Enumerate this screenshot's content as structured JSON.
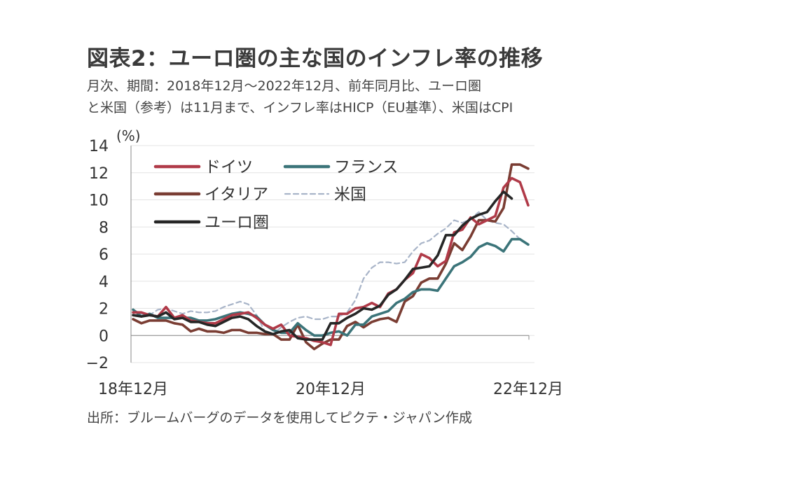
{
  "title": "図表2：ユーロ圏の主な国のインフレ率の推移",
  "subtitle_line1": "月次、期間：2018年12月～2022年12月、前年同月比、ユーロ圏",
  "subtitle_line2": "と米国（参考）は11月まで、インフレ率はHICP（EU基準）、米国はCPI",
  "source": "出所：ブルームバーグのデータを使用してピクテ・ジャパン作成",
  "chart_data": {
    "type": "line",
    "ylabel": "(%)",
    "ylim": [
      -2,
      14
    ],
    "yticks": [
      -2,
      0,
      2,
      4,
      6,
      8,
      10,
      12,
      14
    ],
    "x_tick_labels": [
      {
        "index": 0,
        "label": "18年12月"
      },
      {
        "index": 24,
        "label": "20年12月"
      },
      {
        "index": 48,
        "label": "22年12月"
      }
    ],
    "grid": "horizontal",
    "legend": "top-left",
    "series": [
      {
        "name": "ドイツ",
        "color": "#b03a48",
        "dash": false,
        "values": [
          1.7,
          1.7,
          1.5,
          1.4,
          2.1,
          1.3,
          1.5,
          1.1,
          1.0,
          0.9,
          0.9,
          1.2,
          1.5,
          1.6,
          1.7,
          1.3,
          0.8,
          0.5,
          0.8,
          0.0,
          -0.1,
          -0.2,
          -0.4,
          -0.5,
          -0.7,
          1.6,
          1.6,
          2.0,
          2.1,
          2.4,
          2.1,
          3.1,
          3.4,
          4.1,
          4.6,
          6.0,
          5.7,
          5.1,
          5.5,
          7.6,
          7.8,
          8.7,
          8.2,
          8.5,
          8.8,
          10.9,
          11.6,
          11.3,
          9.6
        ]
      },
      {
        "name": "フランス",
        "color": "#3b7479",
        "dash": false,
        "values": [
          1.9,
          1.4,
          1.6,
          1.3,
          1.3,
          1.3,
          1.3,
          1.3,
          1.1,
          1.1,
          1.2,
          1.4,
          1.6,
          1.7,
          1.6,
          1.4,
          0.8,
          0.4,
          0.2,
          0.2,
          0.9,
          0.4,
          0.0,
          0.0,
          0.2,
          0.3,
          0.0,
          0.8,
          0.8,
          1.4,
          1.6,
          1.8,
          2.4,
          2.7,
          3.2,
          3.4,
          3.4,
          3.3,
          4.2,
          5.1,
          5.4,
          5.8,
          6.5,
          6.8,
          6.6,
          6.2,
          7.1,
          7.1,
          6.7
        ]
      },
      {
        "name": "イタリア",
        "color": "#7a3d33",
        "dash": false,
        "values": [
          1.2,
          0.9,
          1.1,
          1.1,
          1.1,
          0.9,
          0.8,
          0.3,
          0.5,
          0.3,
          0.3,
          0.2,
          0.4,
          0.4,
          0.2,
          0.2,
          0.1,
          0.1,
          -0.3,
          -0.3,
          0.8,
          -0.5,
          -1.0,
          -0.6,
          -0.3,
          -0.3,
          0.7,
          1.0,
          0.6,
          1.0,
          1.2,
          1.3,
          1.0,
          2.5,
          2.9,
          3.9,
          4.2,
          4.2,
          5.3,
          6.8,
          6.3,
          7.3,
          8.5,
          8.5,
          8.4,
          9.4,
          12.6,
          12.6,
          12.3
        ]
      },
      {
        "name": "米国",
        "color": "#a8b4c8",
        "dash": true,
        "values": [
          1.9,
          1.6,
          1.5,
          1.9,
          2.0,
          1.8,
          1.6,
          1.8,
          1.7,
          1.7,
          1.8,
          2.1,
          2.3,
          2.5,
          2.3,
          1.5,
          0.3,
          0.1,
          0.6,
          1.0,
          1.3,
          1.4,
          1.2,
          1.2,
          1.4,
          1.4,
          1.7,
          2.6,
          4.2,
          5.0,
          5.4,
          5.4,
          5.3,
          5.4,
          6.2,
          6.8,
          7.0,
          7.5,
          7.9,
          8.5,
          8.3,
          8.6,
          9.1,
          8.5,
          8.3,
          8.2,
          7.7,
          7.1
        ]
      },
      {
        "name": "ユーロ圏",
        "color": "#262626",
        "dash": false,
        "values": [
          1.5,
          1.4,
          1.5,
          1.4,
          1.7,
          1.2,
          1.3,
          1.0,
          1.0,
          0.8,
          0.7,
          1.0,
          1.3,
          1.4,
          1.2,
          0.7,
          0.3,
          0.1,
          0.3,
          0.4,
          -0.2,
          -0.3,
          -0.3,
          -0.3,
          0.9,
          0.9,
          1.3,
          1.6,
          2.0,
          1.9,
          2.2,
          3.0,
          3.4,
          4.1,
          4.9,
          5.0,
          5.1,
          5.9,
          7.4,
          7.4,
          8.1,
          8.6,
          8.9,
          9.1,
          9.9,
          10.6,
          10.1
        ]
      }
    ]
  }
}
